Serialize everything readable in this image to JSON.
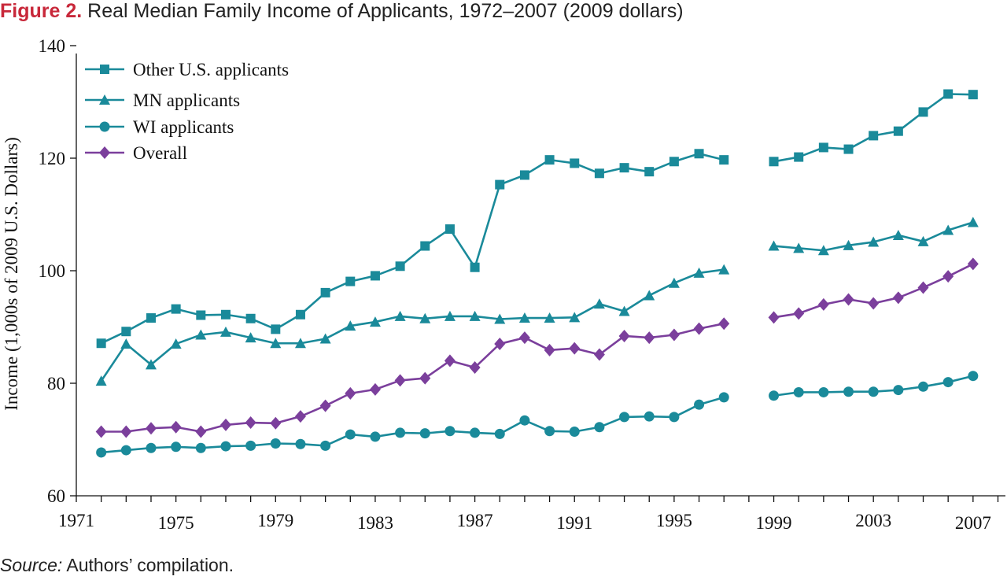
{
  "figure": {
    "label": "Figure 2.",
    "title": "Real Median Family Income of Applicants, 1972–2007 (2009 dollars)",
    "source_label": "Source:",
    "source_text": "Authors’ compilation."
  },
  "colors": {
    "teal": "#1a8a9a",
    "purple": "#7b3f9c",
    "title_red": "#c8283a"
  },
  "chart_data": {
    "type": "line",
    "title": "",
    "xlabel": "",
    "ylabel": "Income (1,000s of 2009 U.S. Dollars)",
    "xlim": [
      1971,
      2008.3
    ],
    "ylim": [
      60,
      140
    ],
    "xticks": [
      1971,
      1972,
      1973,
      1974,
      1975,
      1976,
      1977,
      1978,
      1979,
      1980,
      1981,
      1982,
      1983,
      1984,
      1985,
      1986,
      1987,
      1988,
      1989,
      1990,
      1991,
      1992,
      1993,
      1994,
      1995,
      1996,
      1997,
      1998,
      1999,
      2000,
      2001,
      2002,
      2003,
      2004,
      2005,
      2006,
      2007,
      2008
    ],
    "xtick_labels": [
      "1971",
      "1975",
      "1979",
      "1983",
      "1987",
      "1991",
      "1995",
      "1999",
      "2003",
      "2007"
    ],
    "yticks": [
      60,
      80,
      100,
      120,
      140
    ],
    "grid": false,
    "legend_position": "top-left",
    "x": [
      1972,
      1973,
      1974,
      1975,
      1976,
      1977,
      1978,
      1979,
      1980,
      1981,
      1982,
      1983,
      1984,
      1985,
      1986,
      1987,
      1988,
      1989,
      1990,
      1991,
      1992,
      1993,
      1994,
      1995,
      1996,
      1997,
      1998,
      1999,
      2000,
      2001,
      2002,
      2003,
      2004,
      2005,
      2006,
      2007
    ],
    "series": [
      {
        "name": "Other U.S. applicants",
        "marker": "square",
        "color": "#1a8a9a",
        "values": [
          87.1,
          89.2,
          91.6,
          93.2,
          92.1,
          92.2,
          91.5,
          89.6,
          92.2,
          96.1,
          98.1,
          99.1,
          100.8,
          104.4,
          107.4,
          100.6,
          115.3,
          117.0,
          119.7,
          119.1,
          117.3,
          118.3,
          117.6,
          119.4,
          120.8,
          119.7,
          null,
          119.4,
          120.2,
          121.9,
          121.6,
          124.0,
          124.8,
          128.2,
          131.4,
          131.3
        ]
      },
      {
        "name": "MN applicants",
        "marker": "triangle",
        "color": "#1a8a9a",
        "values": [
          80.4,
          87.0,
          83.3,
          87.0,
          88.6,
          89.1,
          88.1,
          87.1,
          87.1,
          87.9,
          90.2,
          90.9,
          91.9,
          91.5,
          91.9,
          91.9,
          91.4,
          91.6,
          91.6,
          91.7,
          94.1,
          92.8,
          95.6,
          97.8,
          99.6,
          100.2,
          null,
          104.4,
          104.0,
          103.6,
          104.5,
          105.1,
          106.3,
          105.2,
          107.2,
          108.6
        ]
      },
      {
        "name": "WI applicants",
        "marker": "circle",
        "color": "#1a8a9a",
        "values": [
          67.7,
          68.1,
          68.5,
          68.7,
          68.5,
          68.8,
          68.9,
          69.3,
          69.2,
          68.9,
          70.9,
          70.5,
          71.2,
          71.1,
          71.5,
          71.2,
          71.0,
          73.4,
          71.5,
          71.4,
          72.2,
          74.0,
          74.1,
          74.0,
          76.2,
          77.5,
          null,
          77.8,
          78.4,
          78.4,
          78.5,
          78.5,
          78.8,
          79.4,
          80.2,
          81.3
        ]
      },
      {
        "name": "Overall",
        "marker": "diamond",
        "color": "#7b3f9c",
        "values": [
          71.4,
          71.4,
          72.0,
          72.2,
          71.4,
          72.6,
          73.0,
          72.9,
          74.1,
          76.0,
          78.2,
          78.9,
          80.5,
          80.9,
          84.0,
          82.8,
          87.0,
          88.1,
          85.9,
          86.2,
          85.1,
          88.4,
          88.1,
          88.6,
          89.7,
          90.6,
          null,
          91.7,
          92.4,
          94.0,
          94.9,
          94.2,
          95.2,
          97.0,
          99.0,
          101.2
        ]
      }
    ]
  }
}
